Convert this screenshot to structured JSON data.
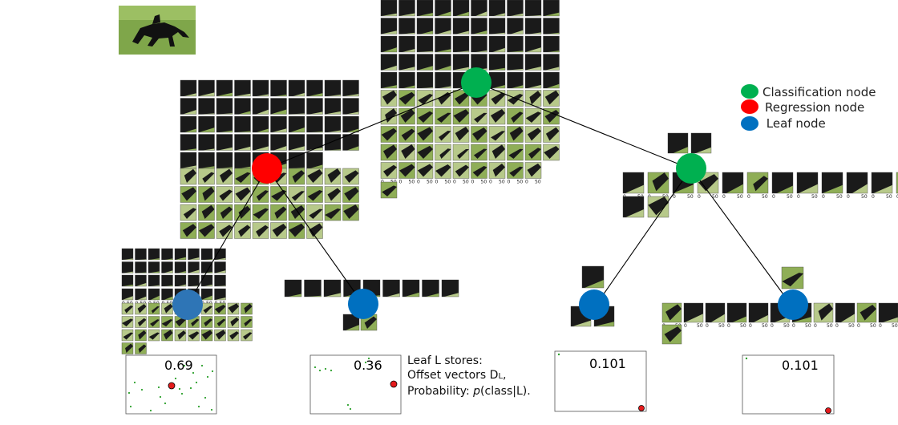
{
  "legend": {
    "classification": {
      "label": "Classification node",
      "color": "#00b050"
    },
    "regression": {
      "label": "Regression node",
      "color": "#ff0000"
    },
    "leaf": {
      "label": " Leaf node",
      "color": "#0070c0"
    }
  },
  "axis_tick": "0",
  "axis_tick_mid": "50",
  "leaf_note": {
    "line1": "Leaf L stores:",
    "line2_prefix": "Offset vectors D",
    "line2_sub": "L",
    "line2_suffix": ",",
    "line3_prefix": "Probability: ",
    "line3_italic": "p",
    "line3_suffix": "(class|L)."
  },
  "plots": [
    {
      "value": "0.69"
    },
    {
      "value": "0.36"
    },
    {
      "value": "0.101"
    },
    {
      "value": "0.101"
    }
  ],
  "colors": {
    "grass": "#8fae57",
    "grass_light": "#b7c98a",
    "horse": "#1a1a1a",
    "point_green": "#2ca02c",
    "point_red": "#e41a1c"
  }
}
